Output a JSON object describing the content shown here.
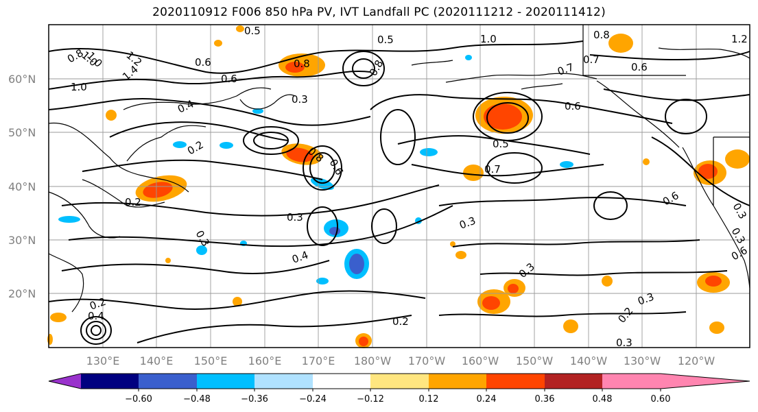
{
  "title": "2020110912 F006 850 hPa PV, IVT Landfall PC (2020111212 - 2020111412)",
  "lat_labels": [
    "60°N",
    "50°N",
    "40°N",
    "30°N",
    "20°N"
  ],
  "lon_labels": [
    "130°E",
    "140°E",
    "150°E",
    "160°E",
    "170°E",
    "180°W",
    "170°W",
    "160°W",
    "150°W",
    "140°W",
    "130°W",
    "120°W"
  ],
  "colorbar": {
    "ticks": [
      "−0.60",
      "−0.48",
      "−0.36",
      "−0.24",
      "−0.12",
      "0.12",
      "0.24",
      "0.36",
      "0.48",
      "0.60"
    ],
    "colors": [
      "#9932cc",
      "#000080",
      "#3a5fcd",
      "#00bfff",
      "#b0e2ff",
      "#ffffff",
      "#ffe680",
      "#ffa500",
      "#ff4500",
      "#b22222",
      "#ff85b0"
    ]
  },
  "contour_labels": [
    "0.5",
    "1.0",
    "0.8",
    "1.0",
    "1.2",
    "0.6",
    "0.8",
    "0.5",
    "1.0",
    "0.8",
    "1.2",
    "0.7",
    "0.6",
    "1.0",
    "1.4",
    "0.6",
    "0.4",
    "0.3",
    "0.8",
    "0.6",
    "0.5",
    "0.6",
    "0.8",
    "0.2",
    "0.7",
    "0.6",
    "0.7",
    "0.3",
    "0.2",
    "0.3",
    "0.3",
    "0.3",
    "0.4",
    "0.3",
    "0.3",
    "0.6",
    "0.3",
    "0.2",
    "0.4",
    "0.2",
    "0.2",
    "0.3"
  ]
}
